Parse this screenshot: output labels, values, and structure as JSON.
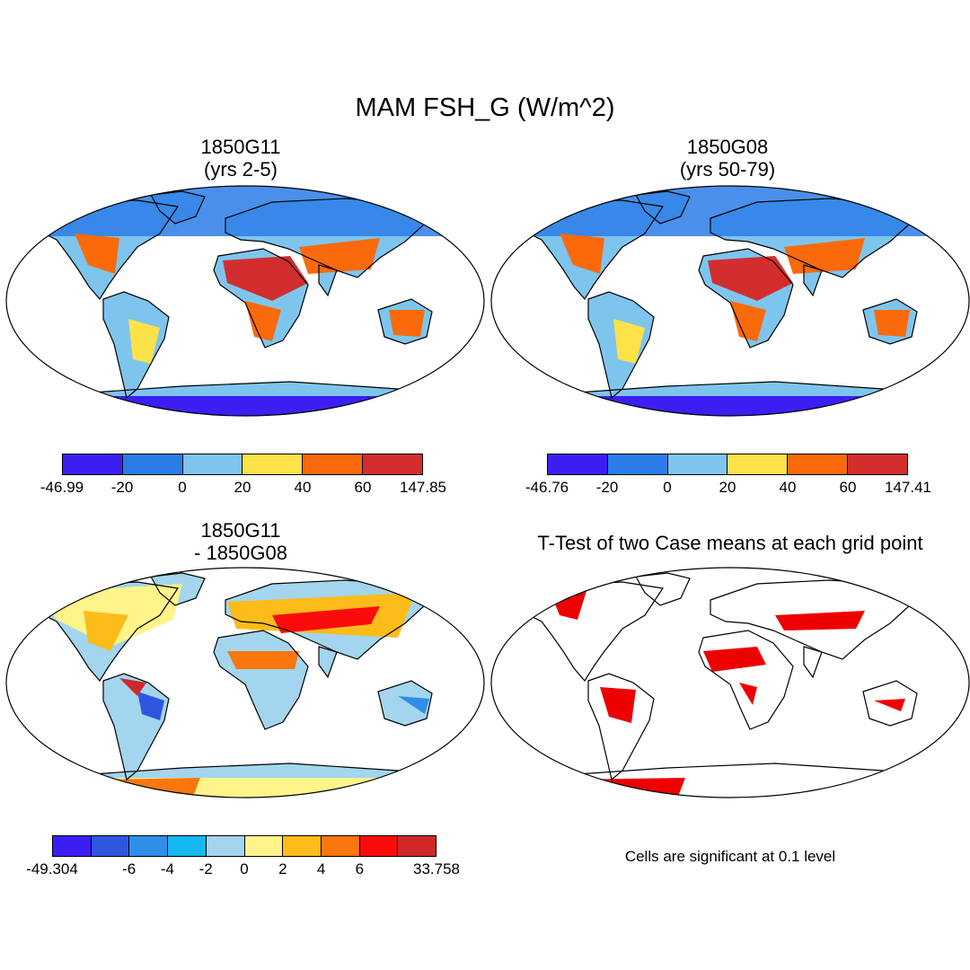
{
  "title": "MAM FSH_G (W/m^2)",
  "panels": [
    {
      "id": "p1",
      "title_line1": "1850G11",
      "title_line2": "(yrs 2-5)"
    },
    {
      "id": "p2",
      "title_line1": "1850G08",
      "title_line2": "(yrs 50-79)"
    },
    {
      "id": "p3",
      "title_line1": "1850G11",
      "title_line2": "- 1850G08"
    },
    {
      "id": "p4",
      "title_line1": "T-Test of two Case means at each grid point",
      "title_line2": ""
    }
  ],
  "colorbars": {
    "cb1": {
      "colors": [
        "#3b1ff2",
        "#2a7de6",
        "#7ec5ee",
        "#fde24a",
        "#fa6a0a",
        "#d22e2e"
      ],
      "labels": [
        "-46.99",
        "-20",
        "0",
        "20",
        "40",
        "60",
        "147.85"
      ]
    },
    "cb2": {
      "colors": [
        "#3b1ff2",
        "#2a7de6",
        "#7ec5ee",
        "#fde24a",
        "#fa6a0a",
        "#d22e2e"
      ],
      "labels": [
        "-46.76",
        "-20",
        "0",
        "20",
        "40",
        "60",
        "147.41"
      ]
    },
    "cb3": {
      "colors": [
        "#3b1ff2",
        "#2f56e0",
        "#2f8fe8",
        "#16b8f2",
        "#a3d5ee",
        "#fff48a",
        "#fdbc1a",
        "#fa760e",
        "#fa0c0c",
        "#cd2929"
      ],
      "labels": [
        "-49.304",
        "-6",
        "-4",
        "-2",
        "0",
        "2",
        "4",
        "6",
        "33.758"
      ]
    }
  },
  "ttest_note": "Cells are significant at 0.1 level",
  "significance_color": "#ee0000"
}
